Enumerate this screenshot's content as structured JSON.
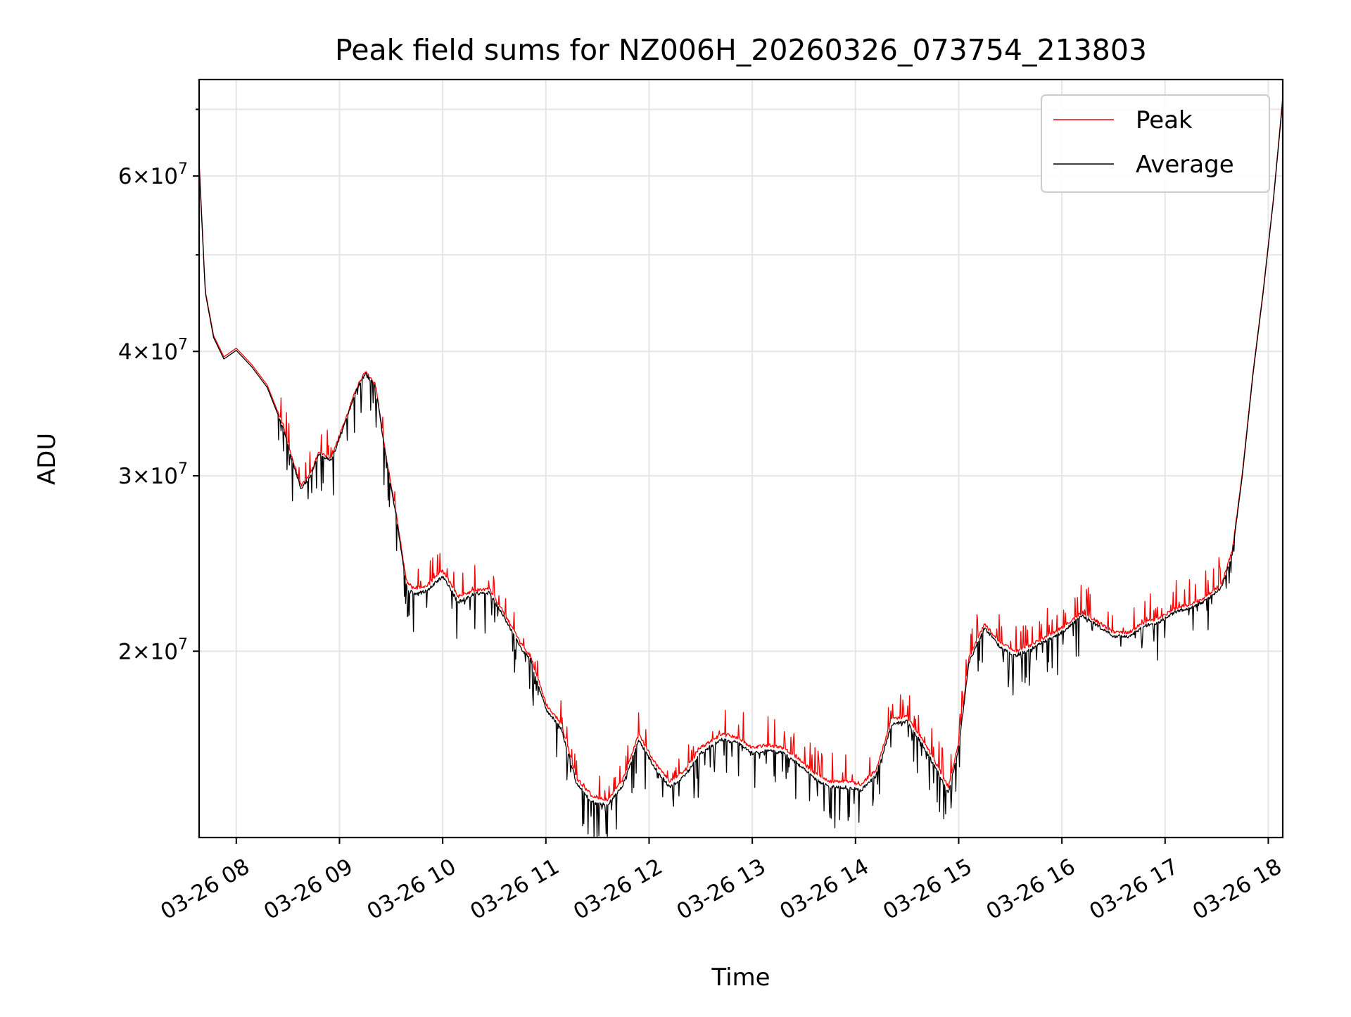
{
  "chart_data": {
    "type": "line",
    "title": "Peak field sums for NZ006H_20260326_073754_213803",
    "xlabel": "Time",
    "ylabel": "ADU",
    "x_unit": "hours (decimal, 2026-03-26)",
    "xlim": [
      7.64,
      18.14
    ],
    "ylim": [
      13000000,
      75000000
    ],
    "y_scale": "log",
    "x_ticks": [
      {
        "value": 8,
        "label": "03-26 08"
      },
      {
        "value": 9,
        "label": "03-26 09"
      },
      {
        "value": 10,
        "label": "03-26 10"
      },
      {
        "value": 11,
        "label": "03-26 11"
      },
      {
        "value": 12,
        "label": "03-26 12"
      },
      {
        "value": 13,
        "label": "03-26 13"
      },
      {
        "value": 14,
        "label": "03-26 14"
      },
      {
        "value": 15,
        "label": "03-26 15"
      },
      {
        "value": 16,
        "label": "03-26 16"
      },
      {
        "value": 17,
        "label": "03-26 17"
      },
      {
        "value": 18,
        "label": "03-26 18"
      }
    ],
    "y_ticks": [
      {
        "value": 20000000,
        "coef": "2",
        "exp": "7"
      },
      {
        "value": 30000000,
        "coef": "3",
        "exp": "7"
      },
      {
        "value": 40000000,
        "coef": "4",
        "exp": "7"
      },
      {
        "value": 60000000,
        "coef": "6",
        "exp": "7"
      }
    ],
    "y_minor_ticks": [
      50000000,
      70000000
    ],
    "grid": true,
    "legend": {
      "position": "top-right"
    },
    "series": [
      {
        "name": "Peak",
        "color": "#ff0000",
        "x": [
          7.64,
          7.7,
          7.78,
          7.88,
          8.0,
          8.15,
          8.3,
          8.45,
          8.55,
          8.63,
          8.72,
          8.8,
          8.92,
          9.05,
          9.15,
          9.25,
          9.35,
          9.45,
          9.55,
          9.65,
          9.72,
          9.85,
          10.0,
          10.15,
          10.3,
          10.45,
          10.6,
          10.75,
          10.85,
          11.0,
          11.15,
          11.3,
          11.45,
          11.6,
          11.75,
          11.9,
          12.05,
          12.2,
          12.35,
          12.5,
          12.7,
          12.85,
          13.0,
          13.15,
          13.3,
          13.45,
          13.6,
          13.75,
          13.9,
          14.05,
          14.2,
          14.35,
          14.5,
          14.65,
          14.8,
          14.9,
          15.0,
          15.1,
          15.25,
          15.4,
          15.55,
          15.7,
          15.85,
          16.0,
          16.2,
          16.35,
          16.5,
          16.65,
          16.8,
          16.95,
          17.1,
          17.25,
          17.4,
          17.55,
          17.65,
          17.75,
          17.85,
          17.95,
          18.05,
          18.14
        ],
        "values": [
          62000000,
          46000000,
          41500000,
          39500000,
          40300000,
          38800000,
          37000000,
          33800000,
          31000000,
          29300000,
          30200000,
          31700000,
          31300000,
          34000000,
          36500000,
          38200000,
          37000000,
          31500000,
          27500000,
          23500000,
          23100000,
          23300000,
          24100000,
          22700000,
          23000000,
          23100000,
          21800000,
          20400000,
          19800000,
          17700000,
          16900000,
          14900000,
          14300000,
          14200000,
          14900000,
          16500000,
          15500000,
          14800000,
          15200000,
          16000000,
          16500000,
          16400000,
          16000000,
          16100000,
          16000000,
          15600000,
          15100000,
          14800000,
          14800000,
          14700000,
          15200000,
          17100000,
          17200000,
          16300000,
          15300000,
          14600000,
          16200000,
          19700000,
          21300000,
          20400000,
          20000000,
          20300000,
          20700000,
          21100000,
          21900000,
          21400000,
          20900000,
          20900000,
          21400000,
          21600000,
          22100000,
          22300000,
          22700000,
          23400000,
          25200000,
          30300000,
          38000000,
          46000000,
          57000000,
          72000000
        ],
        "spike_amplitude": 0.07
      },
      {
        "name": "Average",
        "color": "#000000",
        "x": [
          7.64,
          7.7,
          7.78,
          7.88,
          8.0,
          8.15,
          8.3,
          8.45,
          8.55,
          8.63,
          8.72,
          8.8,
          8.92,
          9.05,
          9.15,
          9.25,
          9.35,
          9.45,
          9.55,
          9.65,
          9.72,
          9.85,
          10.0,
          10.15,
          10.3,
          10.45,
          10.6,
          10.75,
          10.85,
          11.0,
          11.15,
          11.3,
          11.45,
          11.6,
          11.75,
          11.9,
          12.05,
          12.2,
          12.35,
          12.5,
          12.7,
          12.85,
          13.0,
          13.15,
          13.3,
          13.45,
          13.6,
          13.75,
          13.9,
          14.05,
          14.2,
          14.35,
          14.5,
          14.65,
          14.8,
          14.9,
          15.0,
          15.1,
          15.25,
          15.4,
          15.55,
          15.7,
          15.85,
          16.0,
          16.2,
          16.35,
          16.5,
          16.65,
          16.8,
          16.95,
          17.1,
          17.25,
          17.4,
          17.55,
          17.65,
          17.75,
          17.85,
          17.95,
          18.05,
          18.14
        ],
        "values": [
          61500000,
          45800000,
          41300000,
          39300000,
          40100000,
          38600000,
          36800000,
          33600000,
          30800000,
          29100000,
          30000000,
          31500000,
          31100000,
          33800000,
          36300000,
          38000000,
          36800000,
          31300000,
          27300000,
          23200000,
          22800000,
          23000000,
          23800000,
          22400000,
          22800000,
          22900000,
          21600000,
          20200000,
          19600000,
          17500000,
          16700000,
          14700000,
          14100000,
          14000000,
          14700000,
          16300000,
          15300000,
          14600000,
          15000000,
          15800000,
          16300000,
          16200000,
          15800000,
          15900000,
          15800000,
          15400000,
          14900000,
          14600000,
          14600000,
          14500000,
          15000000,
          16900000,
          17000000,
          16100000,
          15100000,
          14400000,
          16000000,
          19500000,
          21100000,
          20200000,
          19800000,
          20100000,
          20500000,
          20900000,
          21700000,
          21200000,
          20700000,
          20700000,
          21200000,
          21400000,
          21900000,
          22100000,
          22500000,
          23200000,
          25000000,
          30100000,
          37800000,
          45800000,
          56800000,
          71500000
        ],
        "spike_amplitude": 0.09
      }
    ]
  }
}
